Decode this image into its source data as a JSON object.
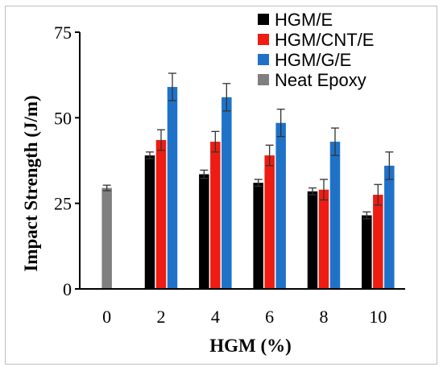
{
  "chart_data": {
    "type": "bar",
    "title": "",
    "xlabel": "HGM (%)",
    "ylabel": "Impact Strength (J/m)",
    "categories": [
      "0",
      "2",
      "4",
      "6",
      "8",
      "10"
    ],
    "ylim": [
      0,
      75
    ],
    "yticks": [
      "0",
      "25",
      "50",
      "75"
    ],
    "legend_position": "top-right",
    "grid": false,
    "series": [
      {
        "name": "HGM/E",
        "color": "#000000",
        "values": [
          null,
          39,
          33.5,
          31,
          28.5,
          21.5
        ],
        "errors": [
          null,
          1,
          1.2,
          1,
          1,
          1
        ]
      },
      {
        "name": "HGM/CNT/E",
        "color": "#ee1c12",
        "values": [
          null,
          43.5,
          43,
          39,
          29,
          27.5
        ],
        "errors": [
          null,
          3,
          3,
          3,
          3,
          3
        ]
      },
      {
        "name": "HGM/G/E",
        "color": "#1f72c8",
        "values": [
          null,
          59,
          56,
          48.5,
          43,
          36
        ],
        "errors": [
          null,
          4,
          4,
          4,
          4,
          4
        ]
      },
      {
        "name": "Neat Epoxy",
        "color": "#7f7f7f",
        "values": [
          29.5,
          null,
          null,
          null,
          null,
          null
        ],
        "errors": [
          0.8,
          null,
          null,
          null,
          null,
          null
        ]
      }
    ]
  }
}
